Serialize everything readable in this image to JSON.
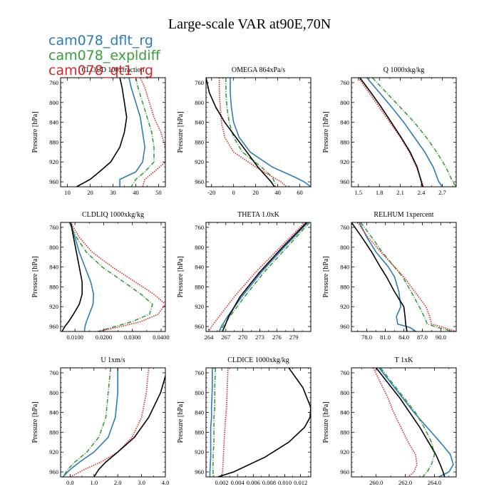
{
  "page": {
    "title": "Large-scale VAR at90E,70N"
  },
  "legend": [
    {
      "label": "cam078_dflt_rg",
      "color": "#2b7bb9",
      "dash": "solid"
    },
    {
      "label": "cam078_expldiff",
      "color": "#3a9c3a",
      "dash": "dashdot"
    },
    {
      "label": "cam078_qt1_rg",
      "color": "#d62728",
      "dash": "dotted"
    }
  ],
  "chart_data": [
    {
      "type": "line",
      "title": "CLOUD  100xfraction",
      "ylabel": "Pressure [hPa]",
      "xlim": [
        7,
        53
      ],
      "ylim": [
        970,
        750
      ],
      "xticks": [
        10,
        20,
        30,
        40,
        50
      ],
      "xticklabels": [
        "10",
        "20",
        "30",
        "40",
        "50"
      ],
      "yticks": [
        760,
        800,
        840,
        880,
        920,
        960
      ],
      "yticklabels": [
        "760",
        "800",
        "840",
        "880",
        "920",
        "960"
      ],
      "y": [
        750,
        770,
        800,
        830,
        860,
        890,
        920,
        940,
        955,
        970
      ],
      "series": [
        {
          "color": "#2b7bb9",
          "dash": "solid",
          "x": [
            37,
            38,
            40,
            42,
            43,
            44,
            43,
            40,
            33,
            33
          ]
        },
        {
          "color": "#3a9c3a",
          "dash": "dashdot",
          "x": [
            40,
            41,
            43,
            45,
            47,
            48,
            48,
            44,
            40,
            38
          ]
        },
        {
          "color": "#d62728",
          "dash": "dotted",
          "x": [
            42,
            44,
            46,
            48,
            51,
            53,
            53,
            48,
            44,
            43
          ]
        },
        {
          "color": "#000000",
          "dash": "solid",
          "x": [
            33,
            34,
            35,
            36,
            35,
            33,
            29,
            24,
            20,
            14
          ]
        }
      ]
    },
    {
      "type": "line",
      "title": "OMEGA  864xPa/s",
      "ylabel": "Pressure [hPa]",
      "xlim": [
        -25,
        70
      ],
      "ylim": [
        970,
        750
      ],
      "xticks": [
        -20,
        0,
        20,
        40,
        60
      ],
      "xticklabels": [
        "-20",
        "0",
        "20",
        "40",
        "60"
      ],
      "yticks": [
        760,
        800,
        840,
        880,
        920,
        960
      ],
      "yticklabels": [
        "760",
        "800",
        "840",
        "880",
        "920",
        "960"
      ],
      "y": [
        750,
        780,
        810,
        840,
        870,
        900,
        930,
        950,
        960,
        970
      ],
      "series": [
        {
          "color": "#2b7bb9",
          "dash": "solid",
          "x": [
            -3,
            -3,
            -2,
            0,
            5,
            15,
            35,
            55,
            64,
            70
          ]
        },
        {
          "color": "#3a9c3a",
          "dash": "dashdot",
          "x": [
            -7,
            -7,
            -6,
            -4,
            0,
            8,
            25,
            35,
            37,
            38
          ]
        },
        {
          "color": "#d62728",
          "dash": "dotted",
          "x": [
            -13,
            -13,
            -12,
            -11,
            -8,
            0,
            20,
            35,
            43,
            48
          ]
        },
        {
          "color": "#000000",
          "dash": "solid",
          "x": [
            -25,
            -22,
            -16,
            -8,
            2,
            12,
            22,
            30,
            34,
            37
          ]
        }
      ]
    },
    {
      "type": "line",
      "title": "Q  1000xkg/kg",
      "ylabel": "Pressure [hPa]",
      "xlim": [
        1.4,
        2.9
      ],
      "ylim": [
        970,
        750
      ],
      "xticks": [
        1.5,
        1.8,
        2.1,
        2.4,
        2.7
      ],
      "xticklabels": [
        "1.5",
        "1.8",
        "2.1",
        "2.4",
        "2.7"
      ],
      "yticks": [
        760,
        800,
        840,
        880,
        920,
        960
      ],
      "yticklabels": [
        "760",
        "800",
        "840",
        "880",
        "920",
        "960"
      ],
      "y": [
        750,
        780,
        810,
        840,
        870,
        900,
        930,
        960,
        970
      ],
      "series": [
        {
          "color": "#2b7bb9",
          "dash": "solid",
          "x": [
            1.62,
            1.8,
            1.98,
            2.15,
            2.3,
            2.45,
            2.57,
            2.65,
            2.7
          ]
        },
        {
          "color": "#3a9c3a",
          "dash": "dashdot",
          "x": [
            1.7,
            1.9,
            2.1,
            2.3,
            2.47,
            2.62,
            2.75,
            2.85,
            2.9
          ]
        },
        {
          "color": "#d62728",
          "dash": "dotted",
          "x": [
            1.5,
            1.65,
            1.8,
            1.95,
            2.1,
            2.23,
            2.33,
            2.41,
            2.43
          ]
        },
        {
          "color": "#000000",
          "dash": "solid",
          "x": [
            1.52,
            1.68,
            1.83,
            1.97,
            2.11,
            2.24,
            2.34,
            2.4,
            2.42
          ]
        }
      ]
    },
    {
      "type": "line",
      "title": "CLDLIQ  1000xkg/kg",
      "ylabel": "Pressure [hPa]",
      "xlim": [
        0.005,
        0.0415
      ],
      "ylim": [
        970,
        750
      ],
      "xticks": [
        0.01,
        0.02,
        0.03,
        0.04
      ],
      "xticklabels": [
        "0.0100",
        "0.0200",
        "0.0300",
        "0.0400"
      ],
      "yticks": [
        760,
        800,
        840,
        880,
        920,
        960
      ],
      "yticklabels": [
        "760",
        "800",
        "840",
        "880",
        "920",
        "960"
      ],
      "y": [
        750,
        780,
        810,
        840,
        870,
        895,
        915,
        935,
        950,
        960,
        970
      ],
      "series": [
        {
          "color": "#2b7bb9",
          "dash": "solid",
          "x": [
            0.0085,
            0.01,
            0.0115,
            0.0135,
            0.0155,
            0.0165,
            0.0163,
            0.015,
            0.014,
            0.0135,
            0.0133
          ]
        },
        {
          "color": "#3a9c3a",
          "dash": "dashdot",
          "x": [
            0.008,
            0.0105,
            0.014,
            0.0195,
            0.027,
            0.033,
            0.037,
            0.036,
            0.03,
            0.024,
            0.018
          ]
        },
        {
          "color": "#d62728",
          "dash": "dotted",
          "x": [
            0.0085,
            0.0115,
            0.016,
            0.023,
            0.031,
            0.0375,
            0.0415,
            0.039,
            0.033,
            0.026,
            0.018
          ]
        },
        {
          "color": "#000000",
          "dash": "solid",
          "x": [
            0.0085,
            0.0095,
            0.0105,
            0.0115,
            0.0125,
            0.0125,
            0.0115,
            0.0095,
            0.0078,
            0.0065,
            0.0055
          ]
        }
      ]
    },
    {
      "type": "line",
      "title": "THETA  1.0xK",
      "ylabel": "Pressure [hPa]",
      "xlim": [
        263.5,
        282
      ],
      "ylim": [
        970,
        750
      ],
      "xticks": [
        264,
        267,
        270,
        273,
        276,
        279
      ],
      "xticklabels": [
        "264",
        "267",
        "270",
        "273",
        "276",
        "279"
      ],
      "yticks": [
        760,
        800,
        840,
        880,
        920,
        960
      ],
      "yticklabels": [
        "760",
        "800",
        "840",
        "880",
        "920",
        "960"
      ],
      "y": [
        750,
        800,
        850,
        900,
        940,
        960,
        970
      ],
      "series": [
        {
          "color": "#2b7bb9",
          "dash": "solid",
          "x": [
            281.5,
            277.3,
            273.3,
            269.8,
            267.3,
            266.2,
            265.8
          ]
        },
        {
          "color": "#3a9c3a",
          "dash": "dashdot",
          "x": [
            281.8,
            277.8,
            273.8,
            270.3,
            267.7,
            266.5,
            266
          ]
        },
        {
          "color": "#d62728",
          "dash": "dotted",
          "x": [
            281,
            276.6,
            272.3,
            268.5,
            265.8,
            264.5,
            264
          ]
        },
        {
          "color": "#000000",
          "dash": "solid",
          "x": [
            281.3,
            277,
            273,
            269.5,
            267.5,
            266.8,
            266.4
          ]
        }
      ]
    },
    {
      "type": "line",
      "title": "RELHUM  1xpercent",
      "ylabel": "Pressure [hPa]",
      "xlim": [
        75.5,
        92.5
      ],
      "ylim": [
        970,
        750
      ],
      "xticks": [
        78,
        81,
        84,
        87,
        90
      ],
      "xticklabels": [
        "78.0",
        "81.0",
        "84.0",
        "87.0",
        "90.0"
      ],
      "yticks": [
        760,
        800,
        840,
        880,
        920,
        960
      ],
      "yticklabels": [
        "760",
        "800",
        "840",
        "880",
        "920",
        "960"
      ],
      "y": [
        750,
        780,
        810,
        840,
        860,
        890,
        920,
        940,
        955,
        962,
        970
      ],
      "series": [
        {
          "color": "#2b7bb9",
          "dash": "solid",
          "x": [
            76.8,
            78,
            79.5,
            81.5,
            82.5,
            83.2,
            83.5,
            82.8,
            83,
            85,
            86
          ]
        },
        {
          "color": "#3a9c3a",
          "dash": "dashdot",
          "x": [
            77,
            78.8,
            80.5,
            82.5,
            83.8,
            85.2,
            86.5,
            87.3,
            87.8,
            89.5,
            92
          ]
        },
        {
          "color": "#d62728",
          "dash": "dotted",
          "x": [
            76.5,
            78.2,
            80.3,
            82.5,
            84,
            85.8,
            87.6,
            88.2,
            88.5,
            90.5,
            92.5
          ]
        },
        {
          "color": "#000000",
          "dash": "solid",
          "x": [
            75.5,
            77.2,
            78.8,
            80.2,
            81.2,
            82.5,
            84,
            84.2,
            84.3,
            84.4,
            84.5
          ]
        }
      ]
    },
    {
      "type": "line",
      "title": "U  1xm/s",
      "ylabel": "Pressure [hPa]",
      "xlim": [
        -0.4,
        4.0
      ],
      "ylim": [
        970,
        750
      ],
      "xticks": [
        0,
        1,
        2,
        3,
        4
      ],
      "xticklabels": [
        "0.0",
        "1.0",
        "2.0",
        "3.0",
        "4.0"
      ],
      "yticks": [
        760,
        800,
        840,
        880,
        920,
        960
      ],
      "yticklabels": [
        "760",
        "800",
        "840",
        "880",
        "920",
        "960"
      ],
      "y": [
        750,
        800,
        850,
        890,
        920,
        940,
        955,
        970
      ],
      "series": [
        {
          "color": "#2b7bb9",
          "dash": "solid",
          "x": [
            2.0,
            2.0,
            1.9,
            1.6,
            1.0,
            0.4,
            0.0,
            -0.3
          ]
        },
        {
          "color": "#3a9c3a",
          "dash": "dashdot",
          "x": [
            1.7,
            1.6,
            1.5,
            1.2,
            0.7,
            0.2,
            -0.1,
            -0.3
          ]
        },
        {
          "color": "#d62728",
          "dash": "dotted",
          "x": [
            3.3,
            3.2,
            3.0,
            2.6,
            2.0,
            1.3,
            0.6,
            0.0
          ]
        },
        {
          "color": "#000000",
          "dash": "solid",
          "x": [
            4.1,
            3.8,
            3.3,
            2.7,
            2.0,
            1.5,
            1.2,
            1.0
          ]
        }
      ]
    },
    {
      "type": "line",
      "title": "CLDICE  1000xkg/kg",
      "ylabel": "Pressure [hPa]",
      "xlim": [
        0.0,
        0.0133
      ],
      "ylim": [
        970,
        750
      ],
      "xticks": [
        0.002,
        0.004,
        0.006,
        0.008,
        0.01,
        0.012
      ],
      "xticklabels": [
        "0.002",
        "0.004",
        "0.006",
        "0.008",
        "0.010",
        "0.012"
      ],
      "yticks": [
        760,
        800,
        840,
        880,
        920,
        960
      ],
      "yticklabels": [
        "760",
        "800",
        "840",
        "880",
        "920",
        "960"
      ],
      "y": [
        750,
        790,
        830,
        850,
        870,
        900,
        930,
        960,
        970
      ],
      "series": [
        {
          "color": "#2b7bb9",
          "dash": "solid",
          "x": [
            0.0008,
            0.0008,
            0.0007,
            0.0007,
            0.0006,
            0.0006,
            0.0006,
            0.0005,
            0.0005
          ]
        },
        {
          "color": "#3a9c3a",
          "dash": "dashdot",
          "x": [
            0.0012,
            0.0011,
            0.0011,
            0.001,
            0.001,
            0.001,
            0.0009,
            0.0009,
            0.0009
          ]
        },
        {
          "color": "#d62728",
          "dash": "dotted",
          "x": [
            0.0028,
            0.0027,
            0.0026,
            0.0025,
            0.0024,
            0.0023,
            0.0022,
            0.0021,
            0.002
          ]
        },
        {
          "color": "#000000",
          "dash": "solid",
          "x": [
            0.0105,
            0.0123,
            0.0133,
            0.0132,
            0.0125,
            0.0105,
            0.0075,
            0.0035,
            0.0015
          ]
        }
      ]
    },
    {
      "type": "line",
      "title": "T  1xK",
      "ylabel": "Pressure [hPa]",
      "xlim": [
        258.3,
        265.5
      ],
      "ylim": [
        970,
        750
      ],
      "xticks": [
        260,
        262,
        264
      ],
      "xticklabels": [
        "260.0",
        "262.0",
        "264.0"
      ],
      "yticks": [
        760,
        800,
        840,
        880,
        920,
        960
      ],
      "yticklabels": [
        "760",
        "800",
        "840",
        "880",
        "920",
        "960"
      ],
      "y": [
        750,
        780,
        810,
        840,
        870,
        900,
        925,
        945,
        960,
        970
      ],
      "series": [
        {
          "color": "#2b7bb9",
          "dash": "solid",
          "x": [
            260.2,
            261,
            261.8,
            262.6,
            263.5,
            264.4,
            265.1,
            265.3,
            265,
            264.3
          ]
        },
        {
          "color": "#3a9c3a",
          "dash": "dashdot",
          "x": [
            260.3,
            261.1,
            261.9,
            262.7,
            263.3,
            263.8,
            264,
            263.8,
            263.5,
            263.2
          ]
        },
        {
          "color": "#d62728",
          "dash": "dotted",
          "x": [
            259.8,
            260.3,
            260.8,
            261.2,
            261.7,
            262.2,
            262.7,
            262.8,
            262.6,
            262.2
          ]
        },
        {
          "color": "#000000",
          "dash": "solid",
          "x": [
            260,
            260.8,
            261.6,
            262.3,
            263,
            263.6,
            264.1,
            264.4,
            264.6,
            264.7
          ]
        }
      ]
    }
  ]
}
